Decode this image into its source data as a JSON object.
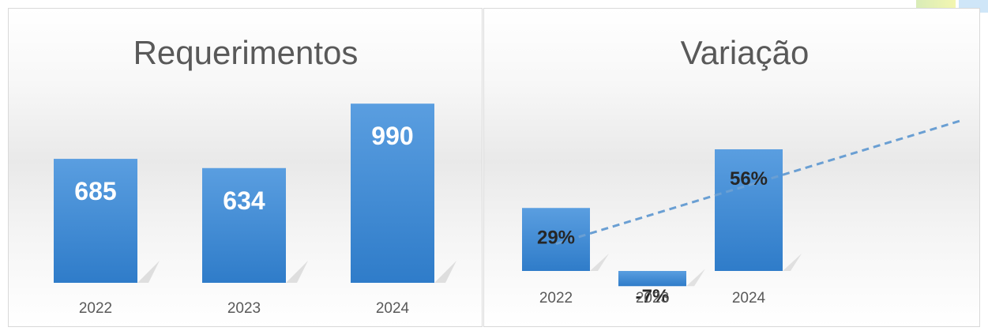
{
  "chart_data": [
    {
      "type": "bar",
      "title": "Requerimentos",
      "categories": [
        "2022",
        "2023",
        "2024"
      ],
      "values": [
        685,
        634,
        990
      ],
      "data_labels": [
        "685",
        "634",
        "990"
      ],
      "ylim": [
        0,
        1100
      ],
      "grid": false,
      "legend": "none",
      "bar_color": "#3f88d4"
    },
    {
      "type": "bar",
      "title": "Variação",
      "categories": [
        "2022",
        "2023",
        "2024"
      ],
      "values": [
        29,
        -7,
        56
      ],
      "data_labels": [
        "29%",
        "-7%",
        "56%"
      ],
      "ylim": [
        -10,
        90
      ],
      "grid": false,
      "legend": "none",
      "trendline": "linear",
      "trend_color": "#6a9fd3",
      "bar_color": "#3f88d4"
    }
  ]
}
